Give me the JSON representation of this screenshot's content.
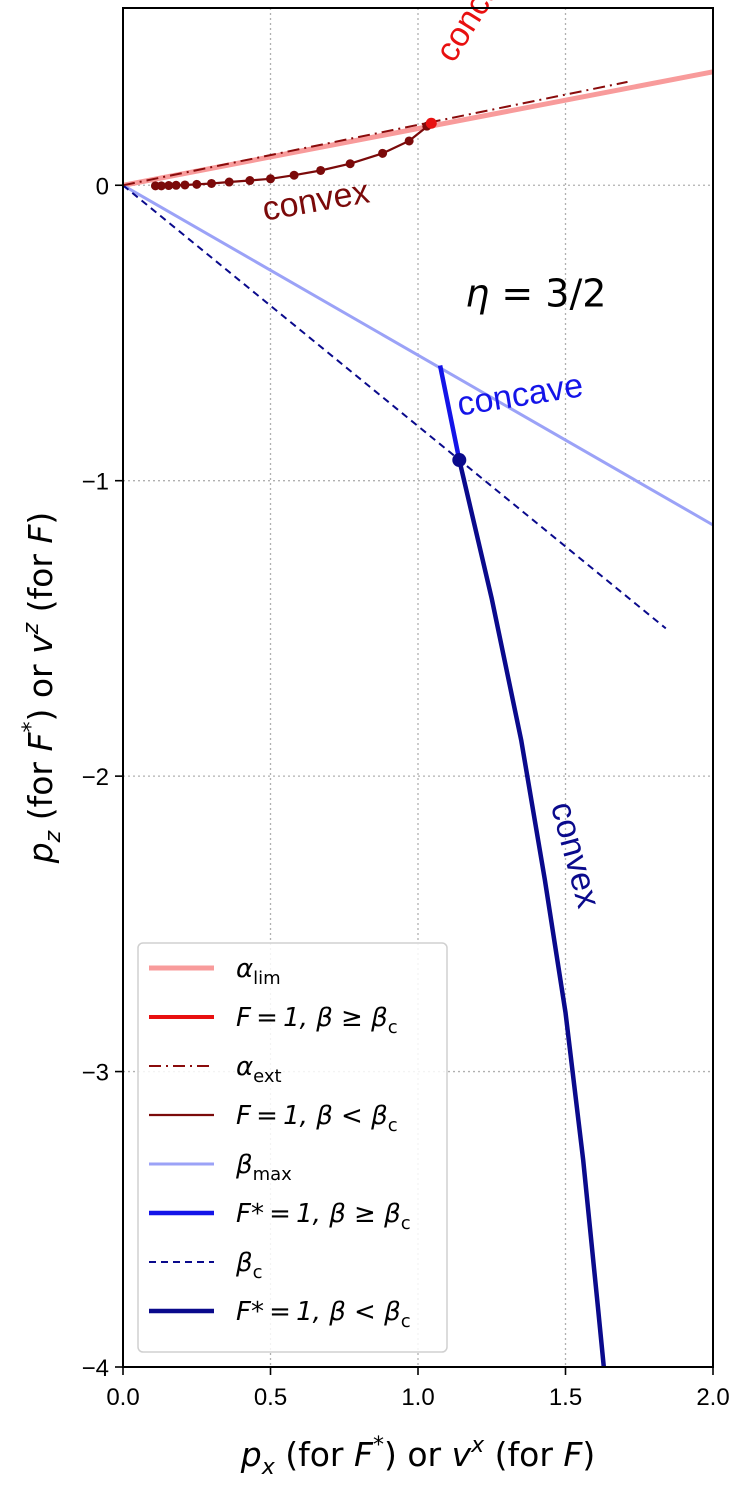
{
  "chart_data": {
    "type": "line",
    "title": "",
    "xlabel": "",
    "ylabel": "",
    "xlabel_parts": {
      "a": "p",
      "a_sub": "x",
      "b": " (for ",
      "c": "F",
      "c_sup": "*",
      "d": ")  or  ",
      "e": "v",
      "e_sup": "x",
      "f": " (for ",
      "g": "F",
      "h": ")"
    },
    "ylabel_parts": {
      "a": "p",
      "a_sub": "z",
      "b": " (for ",
      "c": "F",
      "c_sup": "*",
      "d": ")  or  ",
      "e": "v",
      "e_sup": "z",
      "f": " (for ",
      "g": "F",
      "h": ")"
    },
    "xlim": [
      0.0,
      2.0
    ],
    "ylim": [
      -4,
      0.6
    ],
    "xticks": [
      0.0,
      0.5,
      1.0,
      1.5,
      2.0
    ],
    "xtick_labels": [
      "0.0",
      "0.5",
      "1.0",
      "1.5",
      "2.0"
    ],
    "yticks": [
      0,
      -1,
      -2,
      -3,
      -4
    ],
    "ytick_labels": [
      "0",
      "−1",
      "−2",
      "−3",
      "−4"
    ],
    "grid": true,
    "legend_placement": "lower-left",
    "series": [
      {
        "key": "alpha_lim",
        "legend": {
          "sym": "α",
          "sub": "lim"
        },
        "color": "#f89b9b",
        "style": "solid",
        "width": 5,
        "x": [
          0.0,
          2.0
        ],
        "y": [
          0.0,
          0.384
        ]
      },
      {
        "key": "F1_ge",
        "legend": {
          "main": "F = 1,  β ≥ β",
          "sub": "c"
        },
        "color": "#e81010",
        "style": "solid",
        "width": 4,
        "x": [
          1.035,
          1.05
        ],
        "y": [
          0.2,
          0.215
        ],
        "markers": [
          [
            1.045,
            0.21
          ]
        ]
      },
      {
        "key": "alpha_ext",
        "legend": {
          "sym": "α",
          "sub": "ext"
        },
        "color": "#8a0b0b",
        "style": "dashdot",
        "width": 2,
        "x": [
          0.0,
          1.71
        ],
        "y": [
          0.0,
          0.35
        ]
      },
      {
        "key": "F1_lt",
        "legend": {
          "main": "F = 1,  β < β",
          "sub": "c"
        },
        "color": "#7b0a0a",
        "style": "solid",
        "width": 2.2,
        "x": [
          0.11,
          0.13,
          0.155,
          0.18,
          0.21,
          0.25,
          0.3,
          0.36,
          0.43,
          0.5,
          0.58,
          0.67,
          0.77,
          0.88,
          0.97,
          1.02,
          1.04
        ],
        "y": [
          -0.002,
          -0.002,
          -0.001,
          0.0,
          0.001,
          0.003,
          0.006,
          0.011,
          0.016,
          0.022,
          0.034,
          0.05,
          0.073,
          0.108,
          0.15,
          0.19,
          0.2
        ],
        "markers": [
          [
            0.11,
            -0.002
          ],
          [
            0.13,
            -0.002
          ],
          [
            0.155,
            -0.001
          ],
          [
            0.18,
            0.0
          ],
          [
            0.21,
            0.001
          ],
          [
            0.25,
            0.003
          ],
          [
            0.3,
            0.006
          ],
          [
            0.36,
            0.011
          ],
          [
            0.43,
            0.016
          ],
          [
            0.5,
            0.022
          ],
          [
            0.58,
            0.034
          ],
          [
            0.67,
            0.05
          ],
          [
            0.77,
            0.073
          ],
          [
            0.88,
            0.108
          ],
          [
            0.97,
            0.15
          ],
          [
            1.03,
            0.2
          ]
        ]
      },
      {
        "key": "beta_max",
        "legend": {
          "sym": "β",
          "sub": "max"
        },
        "color": "#9ba2f7",
        "style": "solid",
        "width": 3,
        "x": [
          0.0,
          2.0
        ],
        "y": [
          0.0,
          -1.15
        ]
      },
      {
        "key": "Fstar_ge",
        "legend": {
          "main": "F* = 1,  β ≥ β",
          "sub": "c"
        },
        "color": "#1414e8",
        "style": "solid",
        "width": 4.5,
        "x": [
          1.075,
          1.14
        ],
        "y": [
          -0.61,
          -0.93
        ]
      },
      {
        "key": "beta_c",
        "legend": {
          "sym": "β",
          "sub": "c"
        },
        "color": "#0a0a8c",
        "style": "dashed",
        "width": 2,
        "x": [
          0.0,
          1.84
        ],
        "y": [
          0.0,
          -1.5
        ]
      },
      {
        "key": "Fstar_lt",
        "legend": {
          "main": "F* = 1,  β < β",
          "sub": "c"
        },
        "color": "#0a0a8c",
        "style": "solid",
        "width": 4.5,
        "x": [
          1.14,
          1.25,
          1.35,
          1.43,
          1.5,
          1.56,
          1.61,
          1.63
        ],
        "y": [
          -0.93,
          -1.4,
          -1.88,
          -2.35,
          -2.8,
          -3.3,
          -3.8,
          -4.0
        ],
        "markers": [
          [
            1.14,
            -0.93
          ]
        ]
      }
    ],
    "annotations": [
      {
        "text": "concave",
        "color": "#e81010",
        "x": 1.12,
        "y": 0.41,
        "rotate": -58,
        "size": 24
      },
      {
        "text": "convex",
        "color": "#7b0a0a",
        "x": 0.48,
        "y": -0.12,
        "rotate": -10,
        "size": 34
      },
      {
        "text": "concave",
        "color": "#1414e8",
        "x": 1.14,
        "y": -0.78,
        "rotate": -9,
        "size": 34
      },
      {
        "text": "convex",
        "color": "#0a0a8c",
        "x": 1.45,
        "y": -2.1,
        "rotate": 75,
        "size": 34
      }
    ],
    "eta_label": {
      "sym": "η",
      "rest": " = 3/2",
      "x": 1.16,
      "y": -0.37
    }
  }
}
